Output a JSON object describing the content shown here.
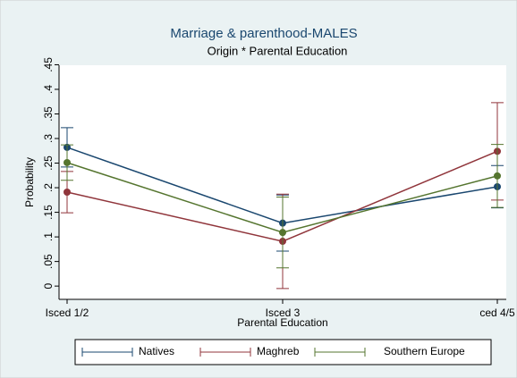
{
  "chart_data": {
    "type": "errorbar-line",
    "title": "Marriage & parenthood-MALES",
    "subtitle": "Origin * Parental Education",
    "y_label": "Probability",
    "x_label": "Parental Education",
    "categories": [
      "Isced 1/2",
      "Isced 3",
      "ced 4/5"
    ],
    "series": [
      {
        "name": "Natives",
        "color": "#1a476f",
        "values": [
          0.282,
          0.128,
          0.202
        ],
        "errors": [
          0.04,
          0.057,
          0.043
        ]
      },
      {
        "name": "Maghreb",
        "color": "#90353b",
        "values": [
          0.191,
          0.091,
          0.274
        ],
        "errors": [
          0.042,
          0.096,
          0.099
        ]
      },
      {
        "name": "Southern Europe",
        "color": "#55752f",
        "values": [
          0.251,
          0.109,
          0.224
        ],
        "errors": [
          0.036,
          0.072,
          0.064
        ]
      }
    ],
    "ylim": [
      -0.027,
      0.449
    ],
    "yticks": [
      0,
      {
        "value": 0.05,
        "label": ".05"
      },
      {
        "value": 0.1,
        "label": ".1"
      },
      {
        "value": 0.15,
        "label": ".15"
      },
      {
        "value": 0.2,
        "label": ".2"
      },
      {
        "value": 0.25,
        "label": ".25"
      },
      {
        "value": 0.3,
        "label": ".3"
      },
      {
        "value": 0.35,
        "label": ".35"
      },
      {
        "value": 0.4,
        "label": ".4"
      },
      {
        "value": 0.45,
        "label": ".45"
      }
    ],
    "legend": "bottom"
  }
}
